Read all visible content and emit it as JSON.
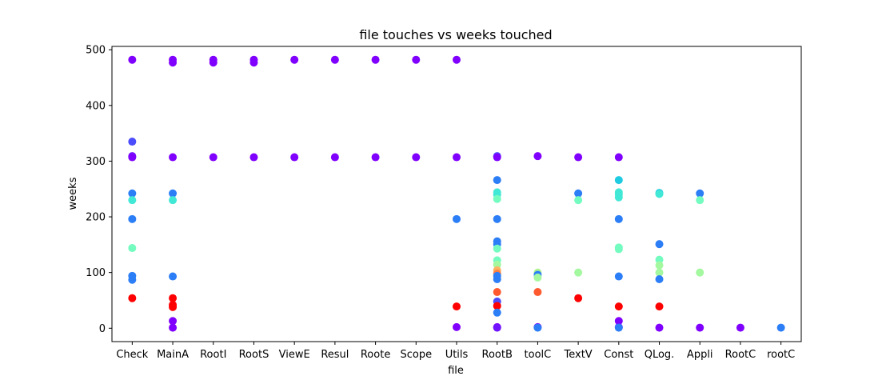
{
  "chart_data": {
    "type": "scatter",
    "title": "file touches vs weeks touched",
    "xlabel": "file",
    "ylabel": "weeks",
    "categories": [
      "Check",
      "MainA",
      "RootI",
      "RootS",
      "ViewE",
      "Resul",
      "Roote",
      "Scope",
      "Utils",
      "RootB",
      "toolC",
      "TextV",
      "Const",
      "QLog.",
      "Appli",
      "RootC",
      "rootC"
    ],
    "ylim": [
      -24,
      506
    ],
    "yticks": [
      0,
      100,
      200,
      300,
      400,
      500
    ],
    "grid": false,
    "points": [
      {
        "x": "Check",
        "y": 482,
        "color": "#8000ff"
      },
      {
        "x": "Check",
        "y": 335,
        "color": "#4b4cfd"
      },
      {
        "x": "Check",
        "y": 309,
        "color": "#7013ff"
      },
      {
        "x": "Check",
        "y": 307,
        "color": "#8000ff"
      },
      {
        "x": "Check",
        "y": 242,
        "color": "#2c7ef7"
      },
      {
        "x": "Check",
        "y": 230,
        "color": "#42e8d6"
      },
      {
        "x": "Check",
        "y": 196,
        "color": "#2c7ef7"
      },
      {
        "x": "Check",
        "y": 144,
        "color": "#74fbbf"
      },
      {
        "x": "Check",
        "y": 94,
        "color": "#2c7ef7"
      },
      {
        "x": "Check",
        "y": 87,
        "color": "#2c7ef7"
      },
      {
        "x": "Check",
        "y": 54,
        "color": "#ff0000"
      },
      {
        "x": "MainA",
        "y": 482,
        "color": "#8000ff"
      },
      {
        "x": "MainA",
        "y": 477,
        "color": "#8000ff"
      },
      {
        "x": "MainA",
        "y": 307,
        "color": "#8000ff"
      },
      {
        "x": "MainA",
        "y": 242,
        "color": "#2c7ef7"
      },
      {
        "x": "MainA",
        "y": 230,
        "color": "#42e8d6"
      },
      {
        "x": "MainA",
        "y": 93,
        "color": "#2c7ef7"
      },
      {
        "x": "MainA",
        "y": 54,
        "color": "#ff0000"
      },
      {
        "x": "MainA",
        "y": 42,
        "color": "#ff0000"
      },
      {
        "x": "MainA",
        "y": 38,
        "color": "#ff0000"
      },
      {
        "x": "MainA",
        "y": 13,
        "color": "#8000ff"
      },
      {
        "x": "MainA",
        "y": 1,
        "color": "#8000ff"
      },
      {
        "x": "RootI",
        "y": 482,
        "color": "#8000ff"
      },
      {
        "x": "RootI",
        "y": 477,
        "color": "#8000ff"
      },
      {
        "x": "RootI",
        "y": 307,
        "color": "#8000ff"
      },
      {
        "x": "RootS",
        "y": 482,
        "color": "#8000ff"
      },
      {
        "x": "RootS",
        "y": 477,
        "color": "#8000ff"
      },
      {
        "x": "RootS",
        "y": 307,
        "color": "#8000ff"
      },
      {
        "x": "ViewE",
        "y": 482,
        "color": "#8000ff"
      },
      {
        "x": "ViewE",
        "y": 307,
        "color": "#8000ff"
      },
      {
        "x": "Resul",
        "y": 482,
        "color": "#8000ff"
      },
      {
        "x": "Resul",
        "y": 307,
        "color": "#8000ff"
      },
      {
        "x": "Roote",
        "y": 482,
        "color": "#8000ff"
      },
      {
        "x": "Roote",
        "y": 307,
        "color": "#8000ff"
      },
      {
        "x": "Scope",
        "y": 482,
        "color": "#8000ff"
      },
      {
        "x": "Scope",
        "y": 307,
        "color": "#8000ff"
      },
      {
        "x": "Utils",
        "y": 482,
        "color": "#8000ff"
      },
      {
        "x": "Utils",
        "y": 307,
        "color": "#8000ff"
      },
      {
        "x": "Utils",
        "y": 196,
        "color": "#2c7ef7"
      },
      {
        "x": "Utils",
        "y": 39,
        "color": "#ff0000"
      },
      {
        "x": "Utils",
        "y": 2,
        "color": "#8000ff"
      },
      {
        "x": "RootB",
        "y": 309,
        "color": "#4b4cfd"
      },
      {
        "x": "RootB",
        "y": 307,
        "color": "#8000ff"
      },
      {
        "x": "RootB",
        "y": 266,
        "color": "#2c7ef7"
      },
      {
        "x": "RootB",
        "y": 244,
        "color": "#42e8d6"
      },
      {
        "x": "RootB",
        "y": 240,
        "color": "#42e8d6"
      },
      {
        "x": "RootB",
        "y": 232,
        "color": "#74fbbf"
      },
      {
        "x": "RootB",
        "y": 196,
        "color": "#2c7ef7"
      },
      {
        "x": "RootB",
        "y": 156,
        "color": "#2c7ef7"
      },
      {
        "x": "RootB",
        "y": 151,
        "color": "#2c7ef7"
      },
      {
        "x": "RootB",
        "y": 143,
        "color": "#74fbbf"
      },
      {
        "x": "RootB",
        "y": 122,
        "color": "#74fbbf"
      },
      {
        "x": "RootB",
        "y": 114,
        "color": "#a4f89f"
      },
      {
        "x": "RootB",
        "y": 104,
        "color": "#ffb360"
      },
      {
        "x": "RootB",
        "y": 98,
        "color": "#ff7f3f"
      },
      {
        "x": "RootB",
        "y": 94,
        "color": "#2c7ef7"
      },
      {
        "x": "RootB",
        "y": 88,
        "color": "#2c7ef7"
      },
      {
        "x": "RootB",
        "y": 65,
        "color": "#ff5a2f"
      },
      {
        "x": "RootB",
        "y": 48,
        "color": "#4b4cfd"
      },
      {
        "x": "RootB",
        "y": 40,
        "color": "#ff0000"
      },
      {
        "x": "RootB",
        "y": 28,
        "color": "#2c7ef7"
      },
      {
        "x": "RootB",
        "y": 2,
        "color": "#8000ff"
      },
      {
        "x": "RootB",
        "y": 1,
        "color": "#7013ff"
      },
      {
        "x": "toolC",
        "y": 309,
        "color": "#8000ff"
      },
      {
        "x": "toolC",
        "y": 100,
        "color": "#b2f396"
      },
      {
        "x": "toolC",
        "y": 96,
        "color": "#2c7ef7"
      },
      {
        "x": "toolC",
        "y": 91,
        "color": "#a4f89f"
      },
      {
        "x": "toolC",
        "y": 65,
        "color": "#ff5a2f"
      },
      {
        "x": "toolC",
        "y": 2,
        "color": "#8000ff"
      },
      {
        "x": "toolC",
        "y": 1,
        "color": "#2c7ef7"
      },
      {
        "x": "TextV",
        "y": 307,
        "color": "#8000ff"
      },
      {
        "x": "TextV",
        "y": 242,
        "color": "#2c7ef7"
      },
      {
        "x": "TextV",
        "y": 230,
        "color": "#74fbbf"
      },
      {
        "x": "TextV",
        "y": 100,
        "color": "#a4f89f"
      },
      {
        "x": "TextV",
        "y": 54,
        "color": "#ff0000"
      },
      {
        "x": "Const",
        "y": 307,
        "color": "#8000ff"
      },
      {
        "x": "Const",
        "y": 266,
        "color": "#1ecbe1"
      },
      {
        "x": "Const",
        "y": 244,
        "color": "#42e8d6"
      },
      {
        "x": "Const",
        "y": 240,
        "color": "#42e8d6"
      },
      {
        "x": "Const",
        "y": 235,
        "color": "#42e8d6"
      },
      {
        "x": "Const",
        "y": 196,
        "color": "#2c7ef7"
      },
      {
        "x": "Const",
        "y": 145,
        "color": "#74fbbf"
      },
      {
        "x": "Const",
        "y": 142,
        "color": "#74fbbf"
      },
      {
        "x": "Const",
        "y": 93,
        "color": "#2c7ef7"
      },
      {
        "x": "Const",
        "y": 39,
        "color": "#ff0000"
      },
      {
        "x": "Const",
        "y": 13,
        "color": "#8000ff"
      },
      {
        "x": "Const",
        "y": 2,
        "color": "#7013ff"
      },
      {
        "x": "Const",
        "y": 1,
        "color": "#2c7ef7"
      },
      {
        "x": "QLog.",
        "y": 243,
        "color": "#1ecbe1"
      },
      {
        "x": "QLog.",
        "y": 241,
        "color": "#42e8d6"
      },
      {
        "x": "QLog.",
        "y": 151,
        "color": "#2c7ef7"
      },
      {
        "x": "QLog.",
        "y": 123,
        "color": "#74fbbf"
      },
      {
        "x": "QLog.",
        "y": 113,
        "color": "#a4f89f"
      },
      {
        "x": "QLog.",
        "y": 100,
        "color": "#a4f89f"
      },
      {
        "x": "QLog.",
        "y": 88,
        "color": "#2c7ef7"
      },
      {
        "x": "QLog.",
        "y": 39,
        "color": "#ff0000"
      },
      {
        "x": "QLog.",
        "y": 1,
        "color": "#8000ff"
      },
      {
        "x": "Appli",
        "y": 242,
        "color": "#2c7ef7"
      },
      {
        "x": "Appli",
        "y": 230,
        "color": "#74fbbf"
      },
      {
        "x": "Appli",
        "y": 100,
        "color": "#a4f89f"
      },
      {
        "x": "Appli",
        "y": 1,
        "color": "#8000ff"
      },
      {
        "x": "RootC",
        "y": 1,
        "color": "#8000ff"
      },
      {
        "x": "rootC",
        "y": 1,
        "color": "#2c7ef7"
      }
    ]
  }
}
